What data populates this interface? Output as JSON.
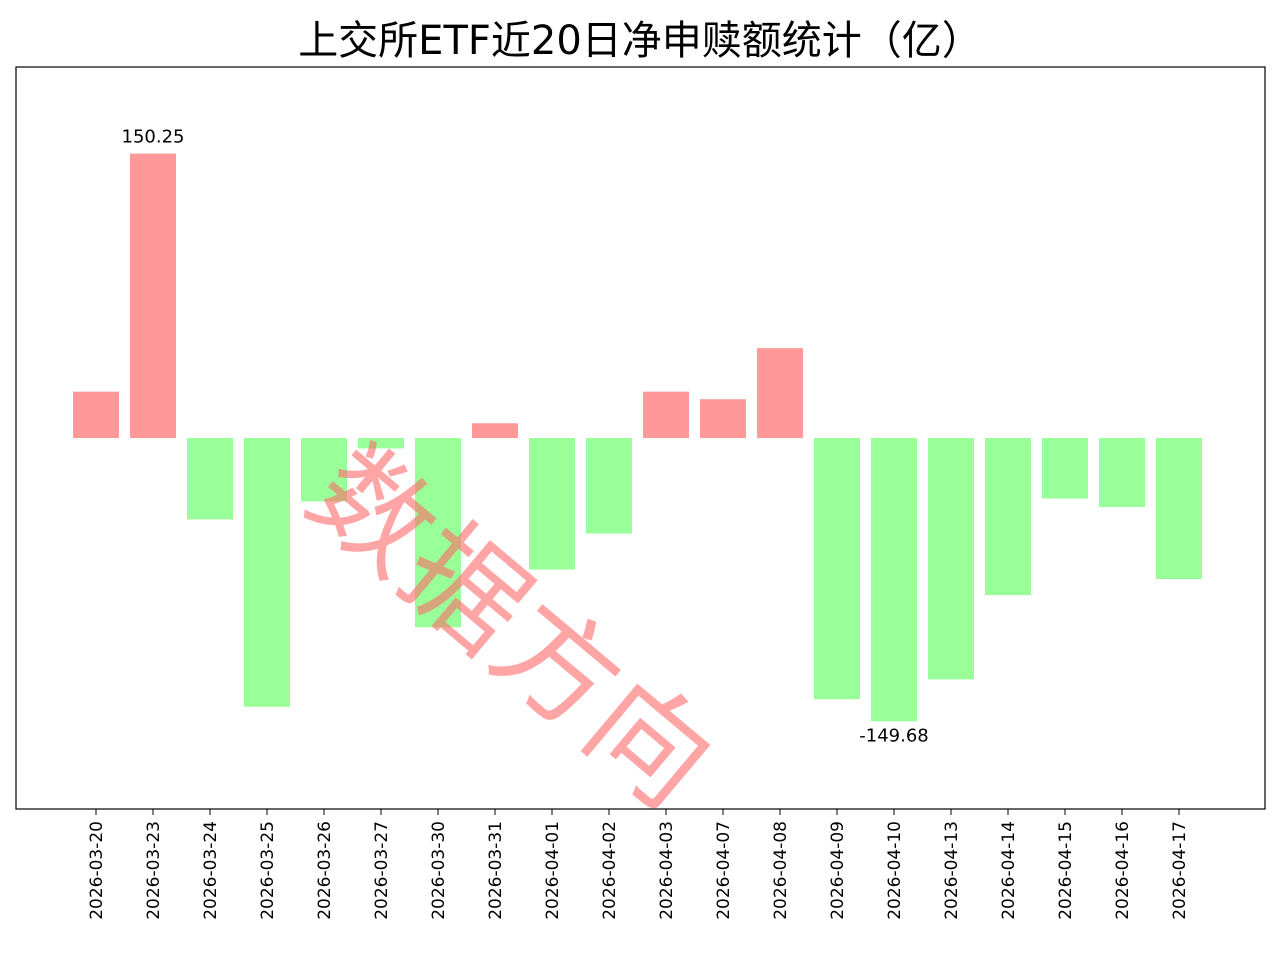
{
  "chart_data": {
    "type": "bar",
    "title": "上交所ETF近20日净申赎额统计（亿）",
    "xlabel": "",
    "ylabel": "",
    "categories": [
      "2026-03-20",
      "2026-03-23",
      "2026-03-24",
      "2026-03-25",
      "2026-03-26",
      "2026-03-27",
      "2026-03-30",
      "2026-03-31",
      "2026-04-01",
      "2026-04-02",
      "2026-04-03",
      "2026-04-07",
      "2026-04-08",
      "2026-04-09",
      "2026-04-10",
      "2026-04-13",
      "2026-04-14",
      "2026-04-15",
      "2026-04-16",
      "2026-04-17"
    ],
    "values": [
      24.5,
      150.25,
      -43.0,
      -142.0,
      -33.5,
      -5.5,
      -100.0,
      7.8,
      -69.5,
      -50.5,
      24.5,
      20.5,
      47.5,
      -138.0,
      -149.68,
      -127.5,
      -83.0,
      -32.0,
      -36.5,
      -74.5
    ],
    "ylim": [
      -196,
      196
    ],
    "grid": false,
    "legend": "none",
    "colors": {
      "positive": "#ff9999",
      "negative": "#99ff99",
      "watermark": "#ff6a6a"
    },
    "annotations": [
      {
        "index": 1,
        "text": "150.25"
      },
      {
        "index": 14,
        "text": "-149.68"
      }
    ]
  },
  "watermark": {
    "text": "数据方向"
  }
}
